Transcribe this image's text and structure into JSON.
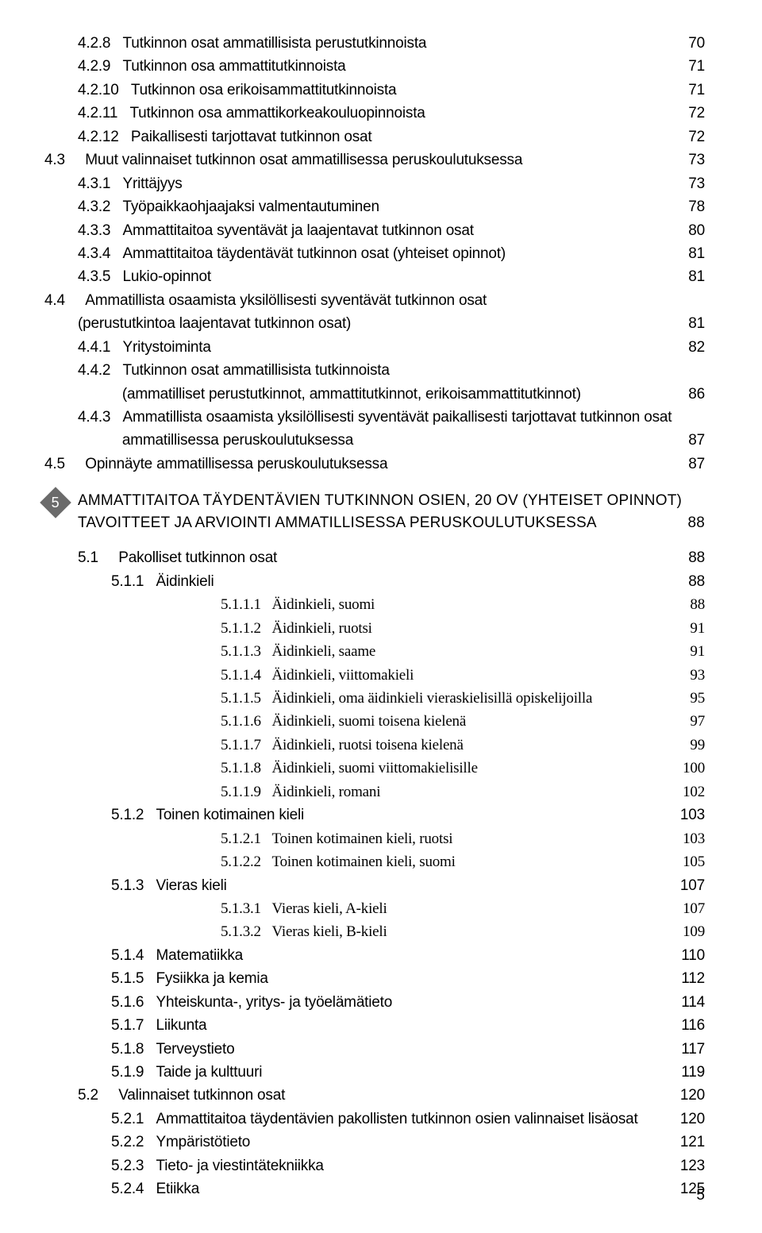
{
  "toc_upper": [
    {
      "indent": 1,
      "num": "4.2.8",
      "title": "Tutkinnon osat ammatillisista perustutkinnoista",
      "page": "70"
    },
    {
      "indent": 1,
      "num": "4.2.9",
      "title": "Tutkinnon osa ammattitutkinnoista",
      "page": "71"
    },
    {
      "indent": 1,
      "num": "4.2.10",
      "title": "Tutkinnon osa erikoisammattitutkinnoista",
      "page": "71"
    },
    {
      "indent": 1,
      "num": "4.2.11",
      "title": "Tutkinnon osa ammattikorkeakouluopinnoista",
      "page": "72"
    },
    {
      "indent": 1,
      "num": "4.2.12",
      "title": "Paikallisesti tarjottavat tutkinnon osat",
      "page": "72"
    },
    {
      "indent": 0,
      "num": "4.3",
      "title": "Muut valinnaiset tutkinnon osat ammatillisessa peruskoulutuksessa",
      "page": "73"
    },
    {
      "indent": 1,
      "num": "4.3.1",
      "title": "Yrittäjyys",
      "page": "73"
    },
    {
      "indent": 1,
      "num": "4.3.2",
      "title": "Työpaikkaohjaajaksi valmentautuminen",
      "page": "78"
    },
    {
      "indent": 1,
      "num": "4.3.3",
      "title": "Ammattitaitoa syventävät ja laajentavat tutkinnon osat",
      "page": "80"
    },
    {
      "indent": 1,
      "num": "4.3.4",
      "title": "Ammattitaitoa täydentävät tutkinnon osat (yhteiset opinnot)",
      "page": "81"
    },
    {
      "indent": 1,
      "num": "4.3.5",
      "title": "Lukio-opinnot",
      "page": "81"
    }
  ],
  "toc_44_head": {
    "indent": 0,
    "num": "4.4",
    "line1": "Ammatillista osaamista yksilöllisesti syventävät tutkinnon osat",
    "line2": "(perustutkintoa laajentavat tutkinnon osat)",
    "page": "81"
  },
  "toc_44_sub": [
    {
      "indent": 1,
      "num": "4.4.1",
      "title": "Yritystoiminta",
      "page": "82"
    }
  ],
  "toc_442_head": {
    "indent": 1,
    "num": "4.4.2",
    "line1": "Tutkinnon osat ammatillisista tutkinnoista",
    "line2": "(ammatilliset perustutkinnot, ammattitutkinnot, erikoisammattitutkinnot)",
    "page": "86"
  },
  "toc_443_head": {
    "indent": 1,
    "num": "4.4.3",
    "line1": "Ammatillista osaamista yksilöllisesti syventävät paikallisesti tarjottavat tutkinnon osat",
    "line2": "ammatillisessa peruskoulutuksessa",
    "page": "87"
  },
  "toc_45": {
    "indent": 0,
    "num": "4.5",
    "title": "Opinnäyte ammatillisessa peruskoulutuksessa",
    "page": "87"
  },
  "chapter": {
    "badge": "5",
    "line1": "AMMATTITAITOA TÄYDENTÄVIEN TUTKINNON OSIEN, 20 OV (YHTEISET OPINNOT)",
    "line2": "TAVOITTEET JA ARVIOINTI AMMATILLISESSA PERUSKOULUTUKSESSA",
    "page": "88"
  },
  "toc_51": {
    "indent": 0,
    "num": "5.1",
    "title": "Pakolliset tutkinnon osat",
    "page": "88"
  },
  "toc_511": {
    "indent": 1,
    "num": "5.1.1",
    "title": "Äidinkieli",
    "page": "88"
  },
  "toc_5111": [
    {
      "indent": 3,
      "num": "5.1.1.1",
      "title": "Äidinkieli, suomi",
      "page": "88"
    },
    {
      "indent": 3,
      "num": "5.1.1.2",
      "title": "Äidinkieli, ruotsi",
      "page": "91"
    },
    {
      "indent": 3,
      "num": "5.1.1.3",
      "title": "Äidinkieli, saame",
      "page": "91"
    },
    {
      "indent": 3,
      "num": "5.1.1.4",
      "title": "Äidinkieli, viittomakieli",
      "page": "93"
    },
    {
      "indent": 3,
      "num": "5.1.1.5",
      "title": "Äidinkieli, oma äidinkieli vieraskielisillä opiskelijoilla",
      "page": "95"
    },
    {
      "indent": 3,
      "num": "5.1.1.6",
      "title": "Äidinkieli, suomi toisena kielenä",
      "page": "97"
    },
    {
      "indent": 3,
      "num": "5.1.1.7",
      "title": "Äidinkieli, ruotsi toisena kielenä",
      "page": "99"
    },
    {
      "indent": 3,
      "num": "5.1.1.8",
      "title": "Äidinkieli, suomi viittomakielisille",
      "page": "100"
    },
    {
      "indent": 3,
      "num": "5.1.1.9",
      "title": "Äidinkieli, romani",
      "page": "102"
    }
  ],
  "toc_512": {
    "indent": 1,
    "num": "5.1.2",
    "title": "Toinen kotimainen kieli",
    "page": "103"
  },
  "toc_5121": [
    {
      "indent": 3,
      "num": "5.1.2.1",
      "title": "Toinen kotimainen kieli, ruotsi",
      "page": "103"
    },
    {
      "indent": 3,
      "num": "5.1.2.2",
      "title": "Toinen kotimainen kieli, suomi",
      "page": "105"
    }
  ],
  "toc_513": {
    "indent": 1,
    "num": "5.1.3",
    "title": "Vieras kieli",
    "page": "107"
  },
  "toc_5131": [
    {
      "indent": 3,
      "num": "5.1.3.1",
      "title": "Vieras kieli, A-kieli",
      "page": "107"
    },
    {
      "indent": 3,
      "num": "5.1.3.2",
      "title": "Vieras kieli, B-kieli",
      "page": "109"
    }
  ],
  "toc_514_rest": [
    {
      "indent": 1,
      "num": "5.1.4",
      "title": "Matematiikka",
      "page": "110"
    },
    {
      "indent": 1,
      "num": "5.1.5",
      "title": "Fysiikka ja kemia",
      "page": "112"
    },
    {
      "indent": 1,
      "num": "5.1.6",
      "title": "Yhteiskunta-, yritys- ja työelämätieto",
      "page": "114"
    },
    {
      "indent": 1,
      "num": "5.1.7",
      "title": "Liikunta",
      "page": "116"
    },
    {
      "indent": 1,
      "num": "5.1.8",
      "title": "Terveystieto",
      "page": "117"
    },
    {
      "indent": 1,
      "num": "5.1.9",
      "title": "Taide ja kulttuuri",
      "page": "119"
    }
  ],
  "toc_52": {
    "indent": 0,
    "num": "5.2",
    "title": "Valinnaiset tutkinnon osat",
    "page": "120"
  },
  "toc_52_sub": [
    {
      "indent": 1,
      "num": "5.2.1",
      "title": "Ammattitaitoa täydentävien pakollisten tutkinnon osien valinnaiset lisäosat",
      "page": "120"
    },
    {
      "indent": 1,
      "num": "5.2.2",
      "title": "Ympäristötieto",
      "page": "121"
    },
    {
      "indent": 1,
      "num": "5.2.3",
      "title": "Tieto- ja viestintätekniikka",
      "page": "123"
    },
    {
      "indent": 1,
      "num": "5.2.4",
      "title": "Etiikka",
      "page": "125"
    }
  ],
  "footer_page": "5"
}
